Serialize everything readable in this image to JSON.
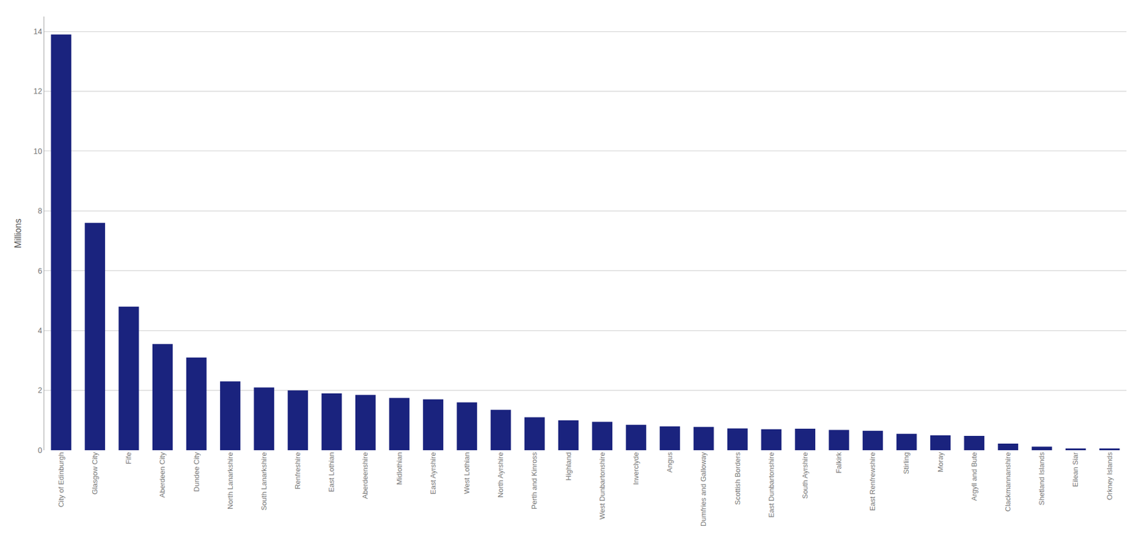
{
  "chart_data": {
    "type": "bar",
    "ylabel": "Millions",
    "categories": [
      "City of Edinburgh",
      "Glasgow City",
      "Fife",
      "Aberdeen City",
      "Dundee City",
      "North Lanarkshire",
      "South Lanarkshire",
      "Renfreshire",
      "East Lothian",
      "Aberdeenshire",
      "Midlothian",
      "East Ayrshire",
      "West Lothian",
      "North Ayrshire",
      "Perth and Kinross",
      "Highland",
      "West Dunbartonshire",
      "Inverclyde",
      "Angus",
      "Dumfries and Galloway",
      "Scottish Borders",
      "East Dunbartonshire",
      "South Ayrshire",
      "Falkirk",
      "East Renfrewshire",
      "Stirling",
      "Moray",
      "Argyll and Bute",
      "Clackmannanshire",
      "Shetland Islands",
      "Eilean Siar",
      "Orkney Islands"
    ],
    "values": [
      13.9,
      7.6,
      4.8,
      3.55,
      3.1,
      2.3,
      2.1,
      2.0,
      1.9,
      1.85,
      1.75,
      1.7,
      1.6,
      1.35,
      1.1,
      1.0,
      0.95,
      0.85,
      0.8,
      0.78,
      0.73,
      0.7,
      0.72,
      0.68,
      0.65,
      0.55,
      0.5,
      0.48,
      0.22,
      0.12,
      0.06,
      0.06
    ],
    "color": "#1a237e",
    "ylim": [
      0,
      14.5
    ],
    "yticks": [
      0,
      2,
      4,
      6,
      8,
      10,
      12,
      14
    ],
    "grid": true
  }
}
